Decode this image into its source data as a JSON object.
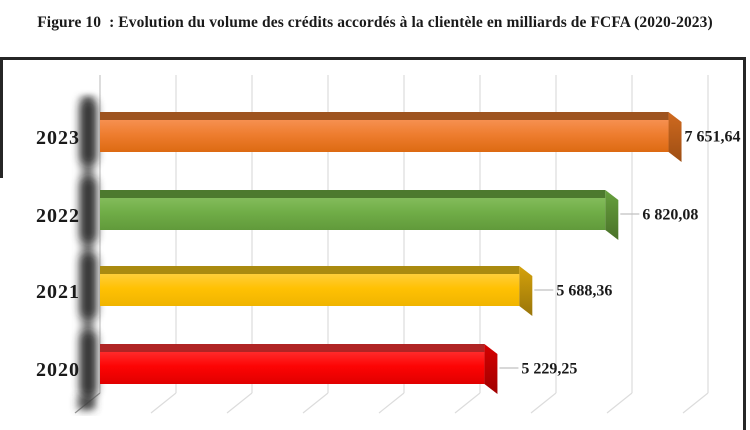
{
  "figure": {
    "title": "Figure 10  : Evolution du volume des crédits accordés à la clientèle en milliards de FCFA (2020-2023)"
  },
  "chart_data": {
    "type": "bar",
    "orientation": "horizontal",
    "style": "3d",
    "title": "Figure 10 : Evolution du volume des crédits accordés à la clientèle en milliards de FCFA (2020-2023)",
    "xlabel": "",
    "ylabel": "",
    "categories": [
      "2023",
      "2022",
      "2021",
      "2020"
    ],
    "values": [
      7651.64,
      6820.08,
      5688.36,
      5229.25
    ],
    "value_labels": [
      "7 651,64",
      "6 820,08",
      "5 688,36",
      "5 229,25"
    ],
    "xlim": [
      0,
      8000
    ],
    "grid_interval": 1000,
    "grid": true,
    "legend": false,
    "series": [
      {
        "category": "2023",
        "value": 7651.64,
        "label": "7 651,64",
        "color": "#ED7D31",
        "gradient": [
          "#F69050",
          "#EE7D2F",
          "#DD6A12"
        ],
        "color_top": "#9E5420",
        "cap_gradient": [
          "#D06A20",
          "#9E4E13"
        ]
      },
      {
        "category": "2022",
        "value": 6820.08,
        "label": "6 820,08",
        "color": "#70AD47",
        "gradient": [
          "#83BC5B",
          "#70AD47",
          "#619A3B"
        ],
        "color_top": "#4D7A2E",
        "cap_gradient": [
          "#67A13E",
          "#4A7129"
        ]
      },
      {
        "category": "2021",
        "value": 5688.36,
        "label": "5 688,36",
        "color": "#FFC000",
        "gradient": [
          "#FFCE39",
          "#FFC103",
          "#F0B400"
        ],
        "color_top": "#AA8A10",
        "cap_gradient": [
          "#D5A20B",
          "#99750A"
        ]
      },
      {
        "category": "2020",
        "value": 5229.25,
        "label": "5 229,25",
        "color": "#FF0000",
        "gradient": [
          "#FF2A2A",
          "#FD0404",
          "#E00000"
        ],
        "color_top": "#B02424",
        "cap_gradient": [
          "#D60000",
          "#A00000"
        ]
      }
    ],
    "colors": {
      "gridline": "#DCDCDC",
      "axis": "#C6C6C6",
      "leader_line": "#C0C0C0",
      "text": "#1a1a1a",
      "frame": "#262626"
    }
  }
}
